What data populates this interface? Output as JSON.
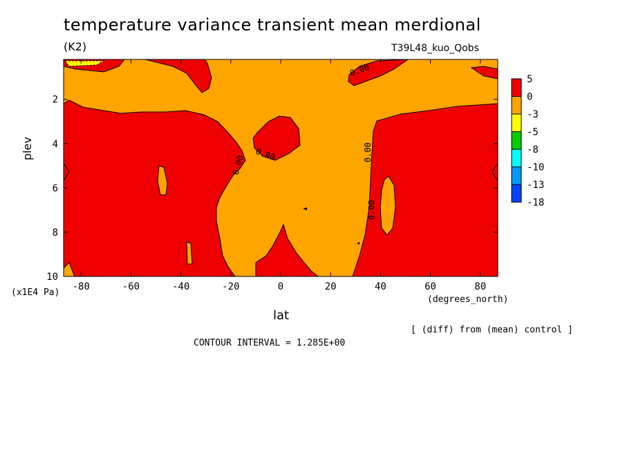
{
  "chart_data": {
    "type": "heatmap",
    "title": "temperature variance transient mean merdional",
    "units": "(K2)",
    "run_label": "T39L48_kuo_Qobs",
    "xlabel": "lat",
    "xunits": "(degrees_north)",
    "ylabel": "plev",
    "yunits": "(x1E4 Pa)",
    "x_ticks": [
      "-80",
      "-60",
      "-40",
      "-20",
      "0",
      "20",
      "40",
      "60",
      "80"
    ],
    "y_ticks": [
      "2",
      "4",
      "6",
      "8",
      "10"
    ],
    "xlim": [
      -87,
      87
    ],
    "ylim": [
      10,
      0.2
    ],
    "contour_label": "0.00",
    "colorbar": {
      "labels": [
        "5",
        "0",
        "-3",
        "-5",
        "-8",
        "-10",
        "-13",
        "-18"
      ],
      "colors": [
        "#ee0000",
        "#ffa500",
        "#ffff00",
        "#00cc00",
        "#00ffff",
        "#0099ff",
        "#0044ff"
      ]
    },
    "footer_note": "[ (diff) from (mean) control ]",
    "contour_interval": "CONTOUR INTERVAL = 1.285E+00"
  }
}
